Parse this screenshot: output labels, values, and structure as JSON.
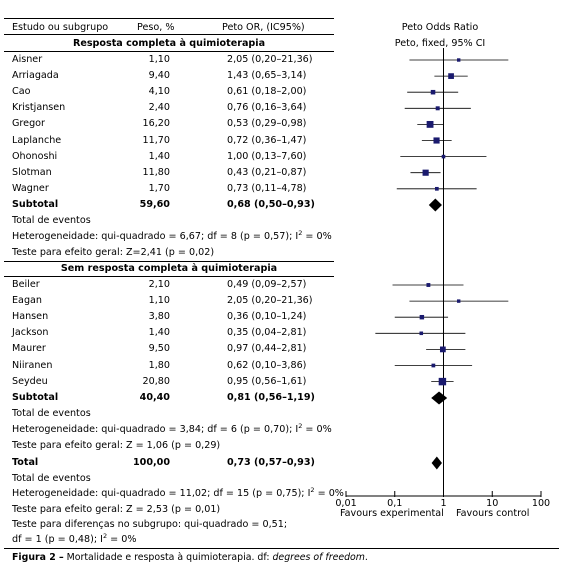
{
  "header": {
    "study": "Estudo ou subgrupo",
    "weight": "Peso, %",
    "peto_or": "Peto OR, (IC95%)",
    "plot_title": "Peto Odds Ratio",
    "plot_subtitle": "Peto, fixed, 95% CI"
  },
  "groups": [
    {
      "title": "Resposta completa à quimioterapia",
      "studies": [
        {
          "name": "Aisner",
          "weight": "1,10",
          "ci_text": "2,05 (0,20–21,36)"
        },
        {
          "name": "Arriagada",
          "weight": "9,40",
          "ci_text": "1,43 (0,65–3,14)"
        },
        {
          "name": "Cao",
          "weight": "4,10",
          "ci_text": "0,61 (0,18–2,00)"
        },
        {
          "name": "Kristjansen",
          "weight": "2,40",
          "ci_text": "0,76 (0,16–3,64)"
        },
        {
          "name": "Gregor",
          "weight": "16,20",
          "ci_text": "0,53 (0,29–0,98)"
        },
        {
          "name": "Laplanche",
          "weight": "11,70",
          "ci_text": "0,72 (0,36–1,47)"
        },
        {
          "name": "Ohonoshi",
          "weight": "1,40",
          "ci_text": "1,00 (0,13–7,60)"
        },
        {
          "name": "Slotman",
          "weight": "11,80",
          "ci_text": "0,43 (0,21–0,87)"
        },
        {
          "name": "Wagner",
          "weight": "1,70",
          "ci_text": "0,73 (0,11–4,78)"
        }
      ],
      "subtotal": {
        "label": "Subtotal",
        "weight": "59,60",
        "ci_text": "0,68 (0,50–0,93)"
      },
      "events": "Total de eventos",
      "het_main": "Heterogeneidade: qui-quadrado = 6,67; df = 8 (p = 0,57); I",
      "het_sup": "2",
      "het_end": " = 0%",
      "effect": "Teste para efeito geral: Z=2,41 (p = 0,02)"
    },
    {
      "title": "Sem resposta completa à quimioterapia",
      "studies": [
        {
          "name": "Beiler",
          "weight": "2,10",
          "ci_text": "0,49 (0,09–2,57)"
        },
        {
          "name": "Eagan",
          "weight": "1,10",
          "ci_text": "2,05 (0,20–21,36)"
        },
        {
          "name": "Hansen",
          "weight": "3,80",
          "ci_text": "0,36 (0,10–1,24)"
        },
        {
          "name": "Jackson",
          "weight": "1,40",
          "ci_text": "0,35 (0,04–2,81)"
        },
        {
          "name": "Maurer",
          "weight": "9,50",
          "ci_text": "0,97 (0,44–2,81)"
        },
        {
          "name": "Niiranen",
          "weight": "1,80",
          "ci_text": "0,62 (0,10–3,86)"
        },
        {
          "name": "Seydeu",
          "weight": "20,80",
          "ci_text": "0,95 (0,56–1,61)"
        }
      ],
      "subtotal": {
        "label": "Subtotal",
        "weight": "40,40",
        "ci_text": "0,81 (0,56–1,19)"
      },
      "events": "Total de eventos",
      "het_main": "Heterogeneidade: qui-quadrado = 3,84; df = 6 (p = 0,70); I",
      "het_sup": "2",
      "het_end": " = 0%",
      "effect": "Teste para efeito geral: Z = 1,06 (p = 0,29)"
    }
  ],
  "total": {
    "label": "Total",
    "weight": "100,00",
    "ci_text": "0,73 (0,57–0,93)",
    "events": "Total de eventos",
    "het_main": "Heterogeneidade: qui-quadrado = 11,02; df = 15 (p = 0,75); I",
    "het_sup": "2",
    "het_end": " = 0%",
    "effect": "Teste para efeito geral: Z = 2,53 (p = 0,01)",
    "subgroup_line1": "Teste para diferenças no subgrupo: qui-quadrado = 0,51;",
    "subgroup_line2_main": "df = 1 (p = 0,48); I",
    "subgroup_line2_sup": "2",
    "subgroup_line2_end": " = 0%"
  },
  "axis": {
    "favours_left": "Favours experimental",
    "favours_right": "Favours control"
  },
  "caption": {
    "label": "Figura 2 –",
    "text": " Mortalidade e resposta à quimioterapia. df: ",
    "italic": "degrees of freedom",
    "end": "."
  },
  "chart_data": {
    "type": "forest",
    "title": "Peto Odds Ratio",
    "subtitle": "Peto, fixed, 95% CI",
    "scale": "log",
    "xlim": [
      0.01,
      100
    ],
    "ticks": [
      0.01,
      0.1,
      1,
      10,
      100
    ],
    "tick_labels": [
      "0,01",
      "0,1",
      "1",
      "10",
      "100"
    ],
    "reference_line": 1,
    "marker_color": "#1a1a6e",
    "subgroups": [
      {
        "name": "Resposta completa à quimioterapia",
        "studies": [
          {
            "name": "Aisner",
            "weight": 1.1,
            "or": 2.05,
            "lo": 0.2,
            "hi": 21.36
          },
          {
            "name": "Arriagada",
            "weight": 9.4,
            "or": 1.43,
            "lo": 0.65,
            "hi": 3.14
          },
          {
            "name": "Cao",
            "weight": 4.1,
            "or": 0.61,
            "lo": 0.18,
            "hi": 2.0
          },
          {
            "name": "Kristjansen",
            "weight": 2.4,
            "or": 0.76,
            "lo": 0.16,
            "hi": 3.64
          },
          {
            "name": "Gregor",
            "weight": 16.2,
            "or": 0.53,
            "lo": 0.29,
            "hi": 0.98
          },
          {
            "name": "Laplanche",
            "weight": 11.7,
            "or": 0.72,
            "lo": 0.36,
            "hi": 1.47
          },
          {
            "name": "Ohonoshi",
            "weight": 1.4,
            "or": 1.0,
            "lo": 0.13,
            "hi": 7.6
          },
          {
            "name": "Slotman",
            "weight": 11.8,
            "or": 0.43,
            "lo": 0.21,
            "hi": 0.87
          },
          {
            "name": "Wagner",
            "weight": 1.7,
            "or": 0.73,
            "lo": 0.11,
            "hi": 4.78
          }
        ],
        "subtotal": {
          "weight": 59.6,
          "or": 0.68,
          "lo": 0.5,
          "hi": 0.93
        }
      },
      {
        "name": "Sem resposta completa à quimioterapia",
        "studies": [
          {
            "name": "Beiler",
            "weight": 2.1,
            "or": 0.49,
            "lo": 0.09,
            "hi": 2.57
          },
          {
            "name": "Eagan",
            "weight": 1.1,
            "or": 2.05,
            "lo": 0.2,
            "hi": 21.36
          },
          {
            "name": "Hansen",
            "weight": 3.8,
            "or": 0.36,
            "lo": 0.1,
            "hi": 1.24
          },
          {
            "name": "Jackson",
            "weight": 1.4,
            "or": 0.35,
            "lo": 0.04,
            "hi": 2.81
          },
          {
            "name": "Maurer",
            "weight": 9.5,
            "or": 0.97,
            "lo": 0.44,
            "hi": 2.81
          },
          {
            "name": "Niiranen",
            "weight": 1.8,
            "or": 0.62,
            "lo": 0.1,
            "hi": 3.86
          },
          {
            "name": "Seydeu",
            "weight": 20.8,
            "or": 0.95,
            "lo": 0.56,
            "hi": 1.61
          }
        ],
        "subtotal": {
          "weight": 40.4,
          "or": 0.81,
          "lo": 0.56,
          "hi": 1.19
        }
      }
    ],
    "total": {
      "weight": 100.0,
      "or": 0.73,
      "lo": 0.57,
      "hi": 0.93
    }
  }
}
